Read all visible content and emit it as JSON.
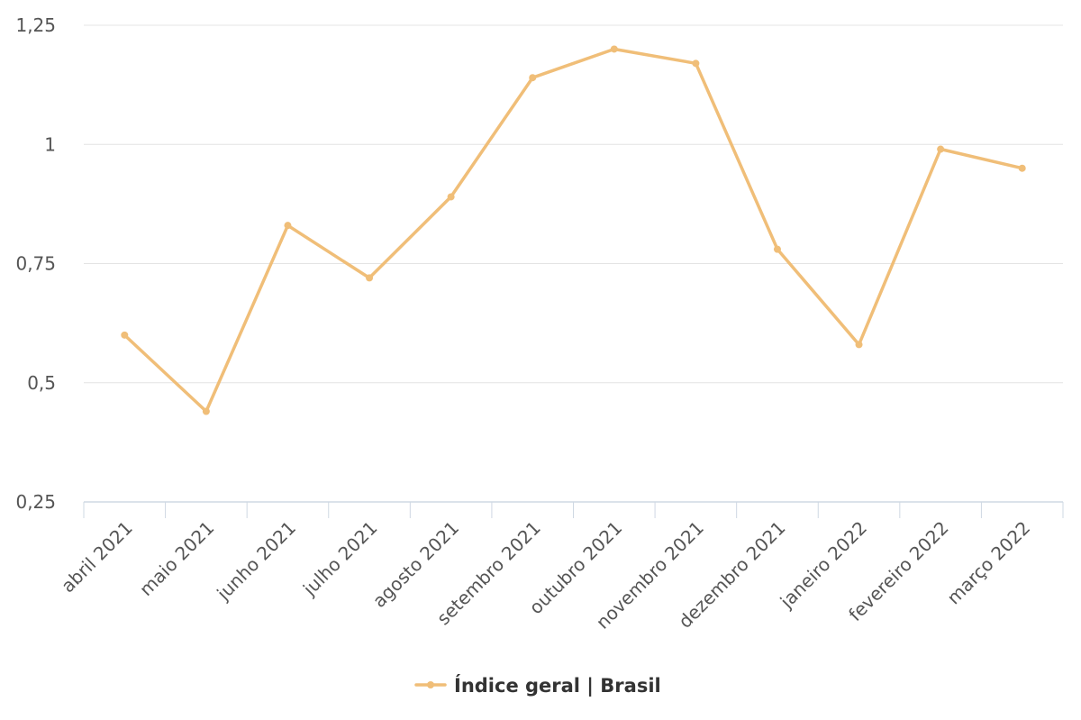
{
  "chart_data": {
    "type": "line",
    "title": "",
    "xlabel": "",
    "ylabel": "",
    "categories": [
      "abril 2021",
      "maio 2021",
      "junho 2021",
      "julho 2021",
      "agosto 2021",
      "setembro 2021",
      "outubro 2021",
      "novembro 2021",
      "dezembro 2021",
      "janeiro 2022",
      "fevereiro 2022",
      "março 2022"
    ],
    "series": [
      {
        "name": "Índice geral | Brasil",
        "color": "#F0BE78",
        "values": [
          0.6,
          0.44,
          0.83,
          0.72,
          0.89,
          1.14,
          1.2,
          1.17,
          0.78,
          0.58,
          0.99,
          0.95
        ]
      }
    ],
    "ylim": [
      0.25,
      1.25
    ],
    "yticks": [
      0.25,
      0.5,
      0.75,
      1,
      1.25
    ],
    "ytick_labels": [
      "0,25",
      "0,5",
      "0,75",
      "1",
      "1,25"
    ],
    "grid": true,
    "legend_position": "bottom-center"
  }
}
